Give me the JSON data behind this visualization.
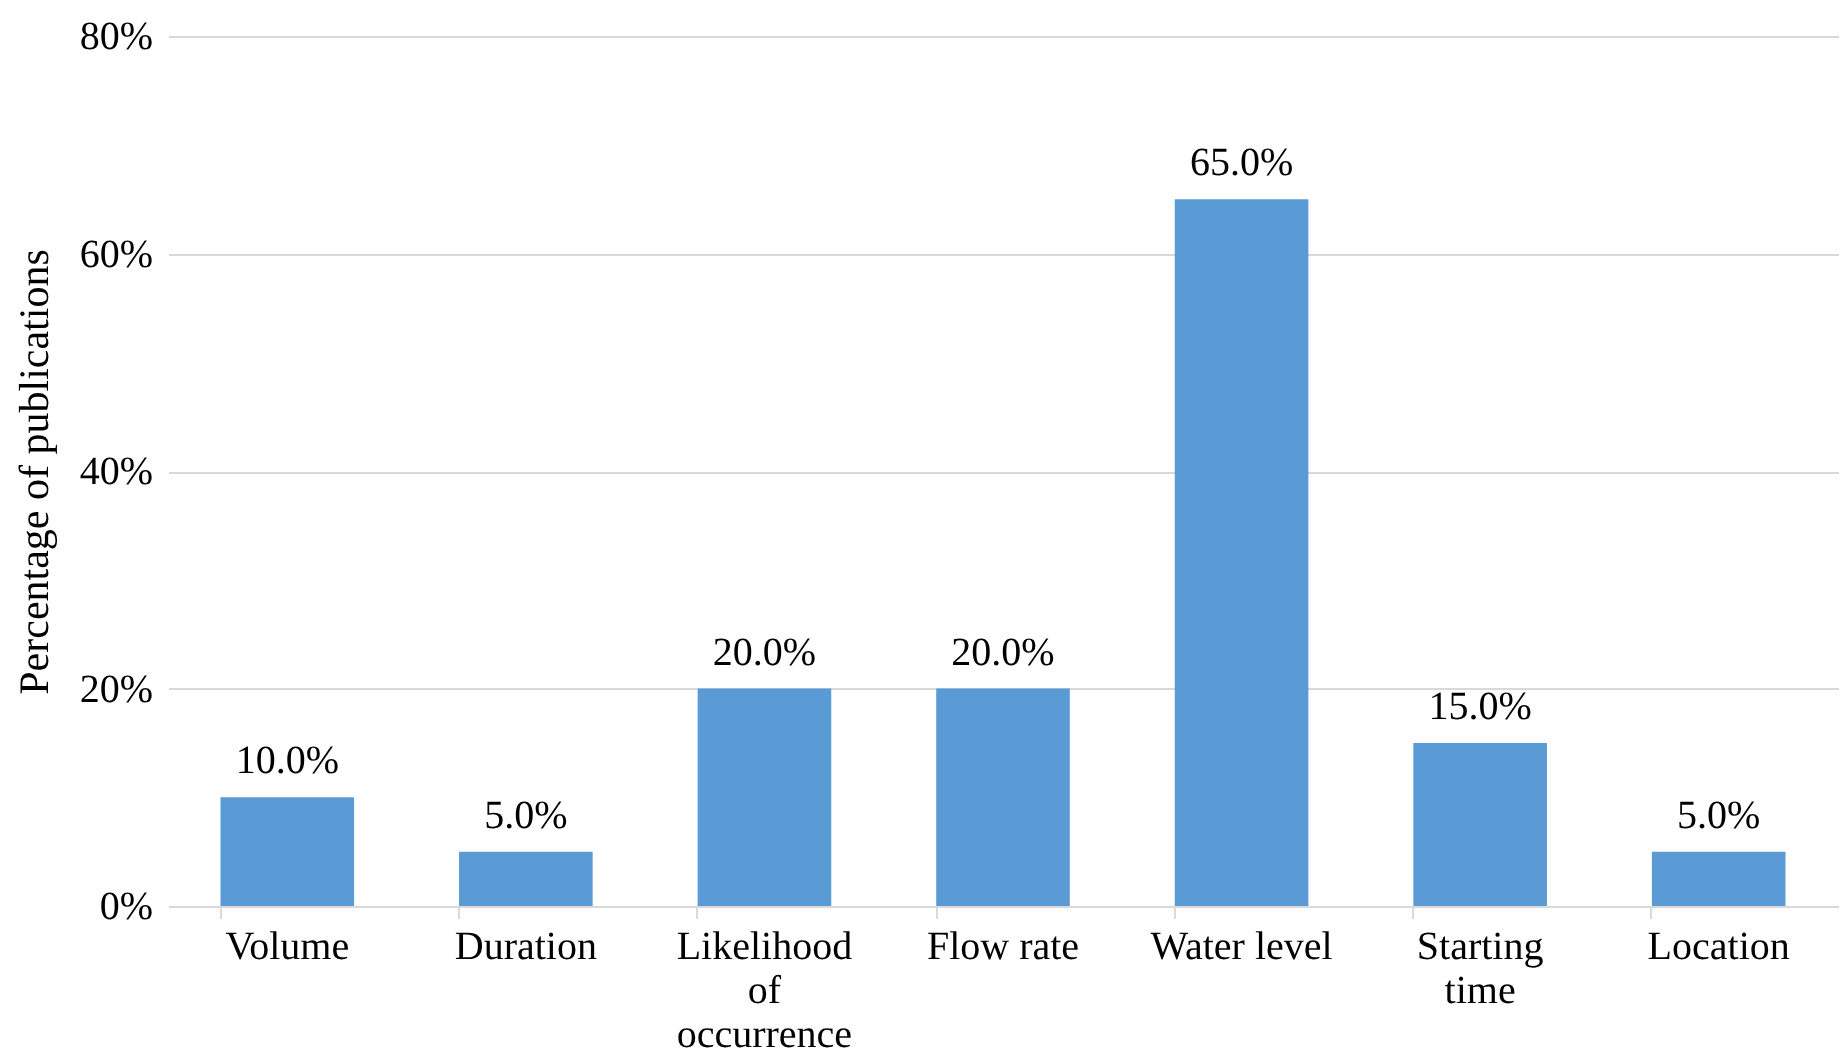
{
  "chart_data": {
    "type": "bar",
    "ylabel": "Percentage of publications",
    "categories": [
      "Volume",
      "Duration",
      "Likelihood of occurrence",
      "Flow rate",
      "Water level",
      "Starting time",
      "Location"
    ],
    "values": [
      10,
      5,
      20,
      20,
      65,
      15,
      5
    ],
    "value_labels": [
      "10.0%",
      "5.0%",
      "20.0%",
      "20.0%",
      "65.0%",
      "15.0%",
      "5.0%"
    ],
    "color": "#5b9bd5",
    "ylim": [
      0,
      80
    ],
    "yticks": [
      {
        "value": 0,
        "label": "0%"
      },
      {
        "value": 20,
        "label": "20%"
      },
      {
        "value": 40,
        "label": "40%"
      },
      {
        "value": 60,
        "label": "60%"
      },
      {
        "value": 80,
        "label": "80%"
      }
    ],
    "grid": "y"
  }
}
